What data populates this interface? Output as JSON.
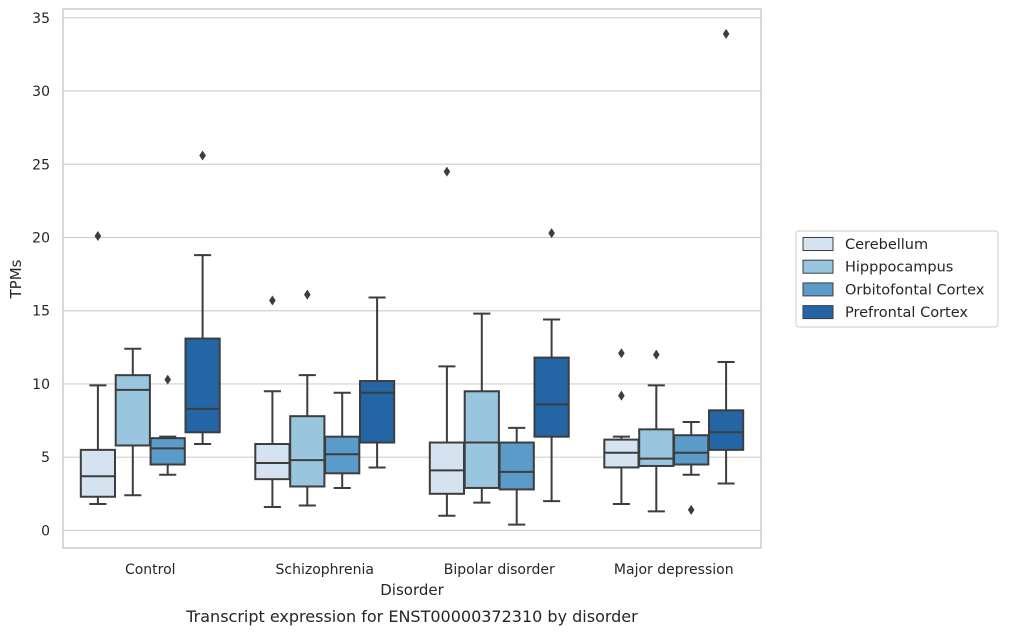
{
  "chart_data": {
    "type": "box",
    "xlabel": "Disorder",
    "ylabel": "TPMs",
    "caption": "Transcript expression for ENST00000372310 by disorder",
    "ylim": [
      -1.2,
      35.6
    ],
    "yticks": [
      0,
      5,
      10,
      15,
      20,
      25,
      30,
      35
    ],
    "grid": "horizontal",
    "legend_position": "right",
    "categories": [
      "Control",
      "Schizophrenia",
      "Bipolar disorder",
      "Major depression"
    ],
    "series": [
      {
        "name": "Cerebellum",
        "color": "#d5e3f0",
        "boxes": [
          {
            "min": 1.8,
            "q1": 2.3,
            "median": 3.7,
            "q3": 5.5,
            "max": 9.9,
            "outliers": [
              20.1
            ]
          },
          {
            "min": 1.6,
            "q1": 3.5,
            "median": 4.6,
            "q3": 5.9,
            "max": 9.5,
            "outliers": [
              15.7
            ]
          },
          {
            "min": 1.0,
            "q1": 2.5,
            "median": 4.1,
            "q3": 6.0,
            "max": 11.2,
            "outliers": [
              24.5
            ]
          },
          {
            "min": 1.8,
            "q1": 4.3,
            "median": 5.3,
            "q3": 6.2,
            "max": 6.4,
            "outliers": [
              12.1,
              9.2
            ]
          }
        ]
      },
      {
        "name": "Hipppocampus",
        "color": "#9ac5df",
        "boxes": [
          {
            "min": 2.4,
            "q1": 5.8,
            "median": 9.6,
            "q3": 10.6,
            "max": 12.4,
            "outliers": []
          },
          {
            "min": 1.7,
            "q1": 3.0,
            "median": 4.8,
            "q3": 7.8,
            "max": 10.6,
            "outliers": [
              16.1
            ]
          },
          {
            "min": 1.9,
            "q1": 2.9,
            "median": 6.0,
            "q3": 9.5,
            "max": 14.8,
            "outliers": []
          },
          {
            "min": 1.3,
            "q1": 4.4,
            "median": 4.9,
            "q3": 6.9,
            "max": 9.9,
            "outliers": [
              12.0
            ]
          }
        ]
      },
      {
        "name": "Orbitofontal Cortex",
        "color": "#5a9bc9",
        "boxes": [
          {
            "min": 3.8,
            "q1": 4.5,
            "median": 5.6,
            "q3": 6.3,
            "max": 6.4,
            "outliers": [
              10.3
            ]
          },
          {
            "min": 2.9,
            "q1": 3.9,
            "median": 5.2,
            "q3": 6.4,
            "max": 9.4,
            "outliers": []
          },
          {
            "min": 0.4,
            "q1": 2.8,
            "median": 4.0,
            "q3": 6.0,
            "max": 7.0,
            "outliers": []
          },
          {
            "min": 3.8,
            "q1": 4.5,
            "median": 5.3,
            "q3": 6.5,
            "max": 7.4,
            "outliers": [
              1.4
            ]
          }
        ]
      },
      {
        "name": "Prefrontal Cortex",
        "color": "#2466a5",
        "boxes": [
          {
            "min": 5.9,
            "q1": 6.7,
            "median": 8.3,
            "q3": 13.1,
            "max": 18.8,
            "outliers": [
              25.6
            ]
          },
          {
            "min": 4.3,
            "q1": 6.0,
            "median": 9.4,
            "q3": 10.2,
            "max": 15.9,
            "outliers": []
          },
          {
            "min": 2.0,
            "q1": 6.4,
            "median": 8.6,
            "q3": 11.8,
            "max": 14.4,
            "outliers": [
              20.3
            ]
          },
          {
            "min": 3.2,
            "q1": 5.5,
            "median": 6.7,
            "q3": 8.2,
            "max": 11.5,
            "outliers": [
              33.9
            ]
          }
        ]
      }
    ]
  }
}
